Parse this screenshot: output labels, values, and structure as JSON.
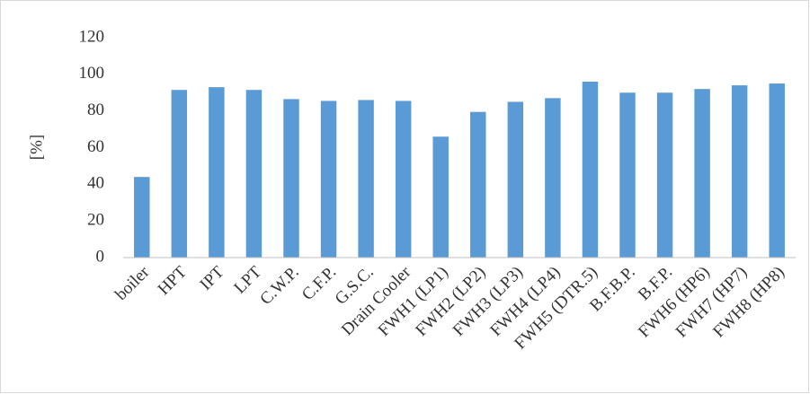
{
  "chart_data": {
    "type": "bar",
    "y_label": "[%]",
    "categories": [
      "boiler",
      "HPT",
      "IPT",
      "LPT",
      "C.W.P.",
      "C.F.P.",
      "G.S.C.",
      "Drain Cooler",
      "FWH1 (LP1)",
      "FWH2 (LP2)",
      "FWH3 (LP3)",
      "FWH4 (LP4)",
      "FWH5 (DTR.5)",
      "B.F.B.P.",
      "B.F.P.",
      "FWH6 (HP6)",
      "FWH7 (HP7)",
      "FWH8 (HP8)"
    ],
    "values": [
      44,
      91.5,
      93,
      91.5,
      86.5,
      85.5,
      86,
      85.5,
      66,
      79.5,
      85,
      87,
      96,
      90,
      90,
      92,
      94,
      95
    ],
    "color": "#5b9bd5",
    "ylim": [
      0,
      120
    ],
    "yticks": [
      0,
      20,
      40,
      60,
      80,
      100,
      120
    ],
    "grid": false
  }
}
